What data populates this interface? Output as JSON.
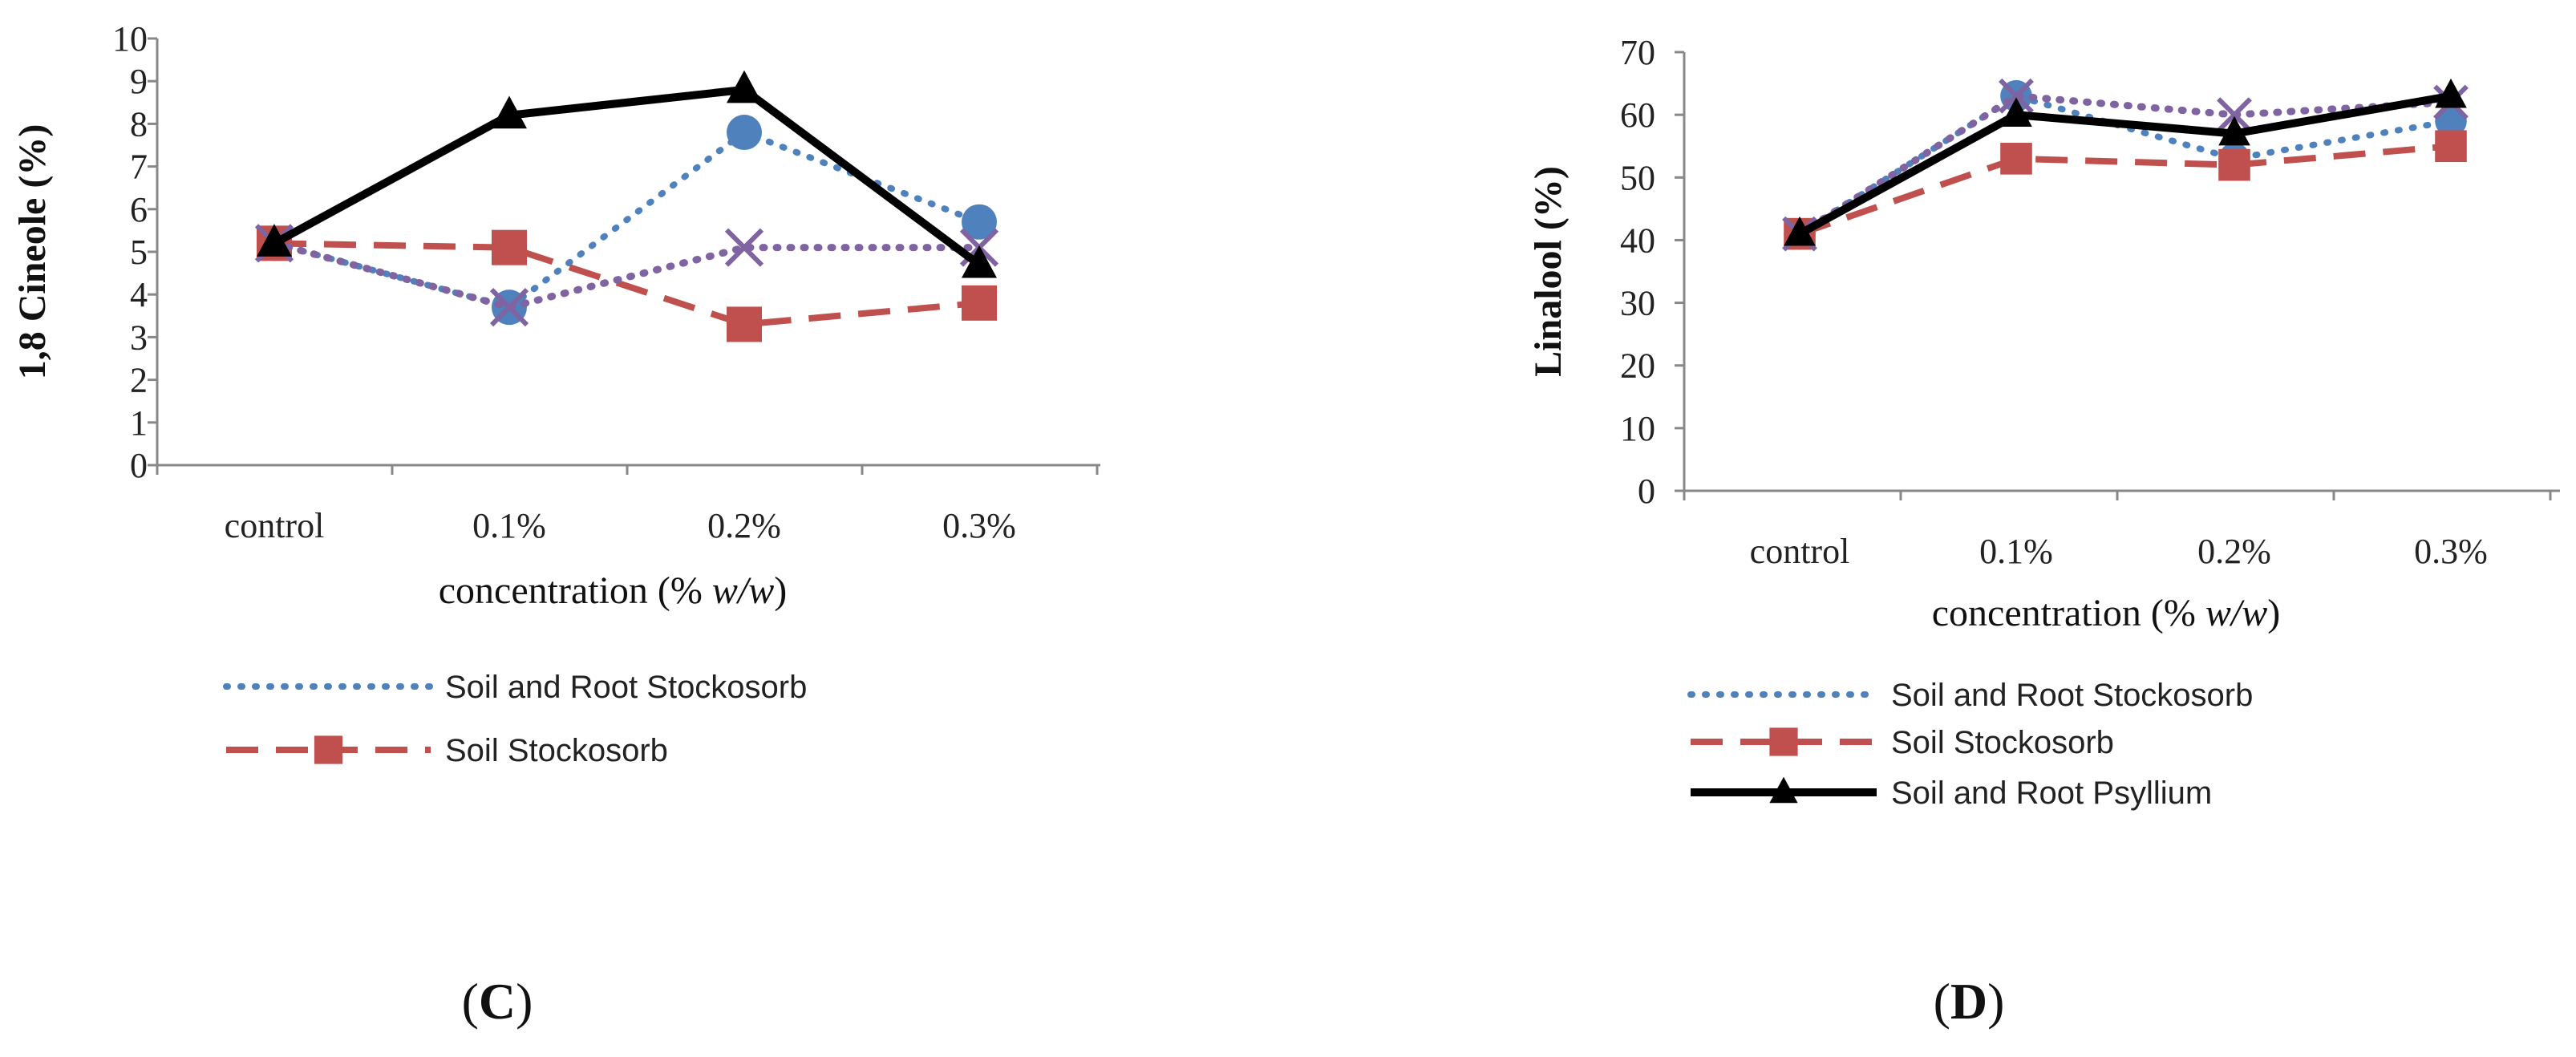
{
  "colors": {
    "soil_root_stockosorb": "#4F81BD",
    "soil_stockosorb": "#C0504D",
    "soil_root_psyllium": "#000000",
    "extra_series": "#8064A2"
  },
  "chart_data": [
    {
      "type": "line",
      "panel": "C",
      "ylabel": "1,8 Cineole (%)",
      "xlabel_prefix": "concentration (% ",
      "xlabel_italic": "w/w",
      "xlabel_suffix": ")",
      "categories": [
        "control",
        "0.1%",
        "0.2%",
        "0.3%"
      ],
      "ylim": [
        0,
        10
      ],
      "yticks": [
        0,
        1,
        2,
        3,
        4,
        5,
        6,
        7,
        8,
        9,
        10
      ],
      "series": [
        {
          "name": "Soil and Root Stockosorb",
          "key": "srs",
          "values": [
            5.2,
            3.7,
            7.8,
            5.7
          ]
        },
        {
          "name": "Soil  Stockosorb",
          "key": "ss",
          "values": [
            5.2,
            5.1,
            3.3,
            3.8
          ]
        },
        {
          "name": "Soil and Root Psyllium",
          "key": "srp",
          "values": [
            5.2,
            8.2,
            8.8,
            4.7
          ]
        },
        {
          "name": "",
          "key": "x",
          "values": [
            5.2,
            3.7,
            5.1,
            5.1
          ]
        }
      ],
      "legend": [
        "Soil and Root Stockosorb",
        "Soil  Stockosorb"
      ]
    },
    {
      "type": "line",
      "panel": "D",
      "ylabel": "Linalool (%)",
      "xlabel_prefix": "concentration (% ",
      "xlabel_italic": "w/w",
      "xlabel_suffix": ")",
      "categories": [
        "control",
        "0.1%",
        "0.2%",
        "0.3%"
      ],
      "ylim": [
        0,
        70
      ],
      "yticks": [
        0,
        10,
        20,
        30,
        40,
        50,
        60,
        70
      ],
      "series": [
        {
          "name": "Soil and Root Stockosorb",
          "key": "srs",
          "values": [
            41,
            63,
            53,
            59
          ]
        },
        {
          "name": "Soil  Stockosorb",
          "key": "ss",
          "values": [
            41,
            53,
            52,
            55
          ]
        },
        {
          "name": "Soil and Root Psyllium",
          "key": "srp",
          "values": [
            41,
            60,
            57,
            63
          ]
        },
        {
          "name": "",
          "key": "x",
          "values": [
            41,
            63,
            60,
            62
          ]
        }
      ],
      "legend": [
        "Soil and Root Stockosorb",
        "Soil  Stockosorb",
        "Soil and Root Psyllium"
      ]
    }
  ],
  "panel_labels": {
    "c_open": "(",
    "c_letter": "C",
    "c_close": ")",
    "d_open": "(",
    "d_letter": "D",
    "d_close": ")"
  }
}
